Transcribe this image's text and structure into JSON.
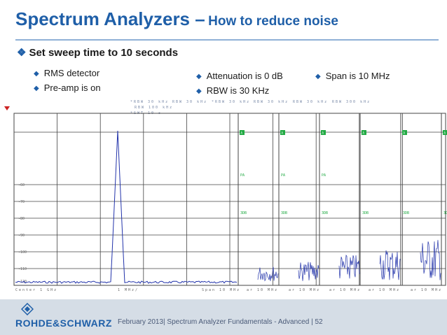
{
  "slide": {
    "title_main": "Spectrum Analyzers –",
    "title_sub": "How to reduce noise",
    "main_bullet": "Set sweep time to 10 seconds",
    "bullets_left": [
      "RMS detector",
      "Pre-amp is on"
    ],
    "bullets_mid": [
      "Attenuation is 0 dB",
      "RBW is 30 KHz"
    ],
    "bullets_right": [
      "Span is 10 MHz"
    ]
  },
  "analyzer": {
    "header_row1": [
      "*RBW 30 kHz",
      "RBW 30 kHz",
      "*RBW 30 kHz",
      "RBW 30 kHz",
      "RBW 30 kHz",
      "RBW 300 kHz"
    ],
    "header_row2": "RBW 100 kHz",
    "header_row3": "*SWT 10 s",
    "level_labels": [
      "-60",
      "-70",
      "-80",
      "-90",
      "-100",
      "-110",
      "-120"
    ],
    "bottom_labels": [
      "Center 1 GHz",
      "1 MHz/",
      "Span 10 MHz",
      "ar 10 MHz",
      "ar 10 MHz",
      "ar 10 MHz",
      "ar 10 MHz",
      "ar 10 MHz"
    ],
    "panel_badge": "A",
    "panel_labels_mid": [
      "PA",
      "PA",
      "PA"
    ],
    "panel_labels_low": "3DB",
    "colors": {
      "trace": "#2233aa",
      "grid": "#444444",
      "badge": "#22aa44"
    }
  },
  "footer": {
    "logo": "ROHDE&SCHWARZ",
    "text": "February 2013| Spectrum Analyzer Fundamentals - Advanced  |  52"
  }
}
